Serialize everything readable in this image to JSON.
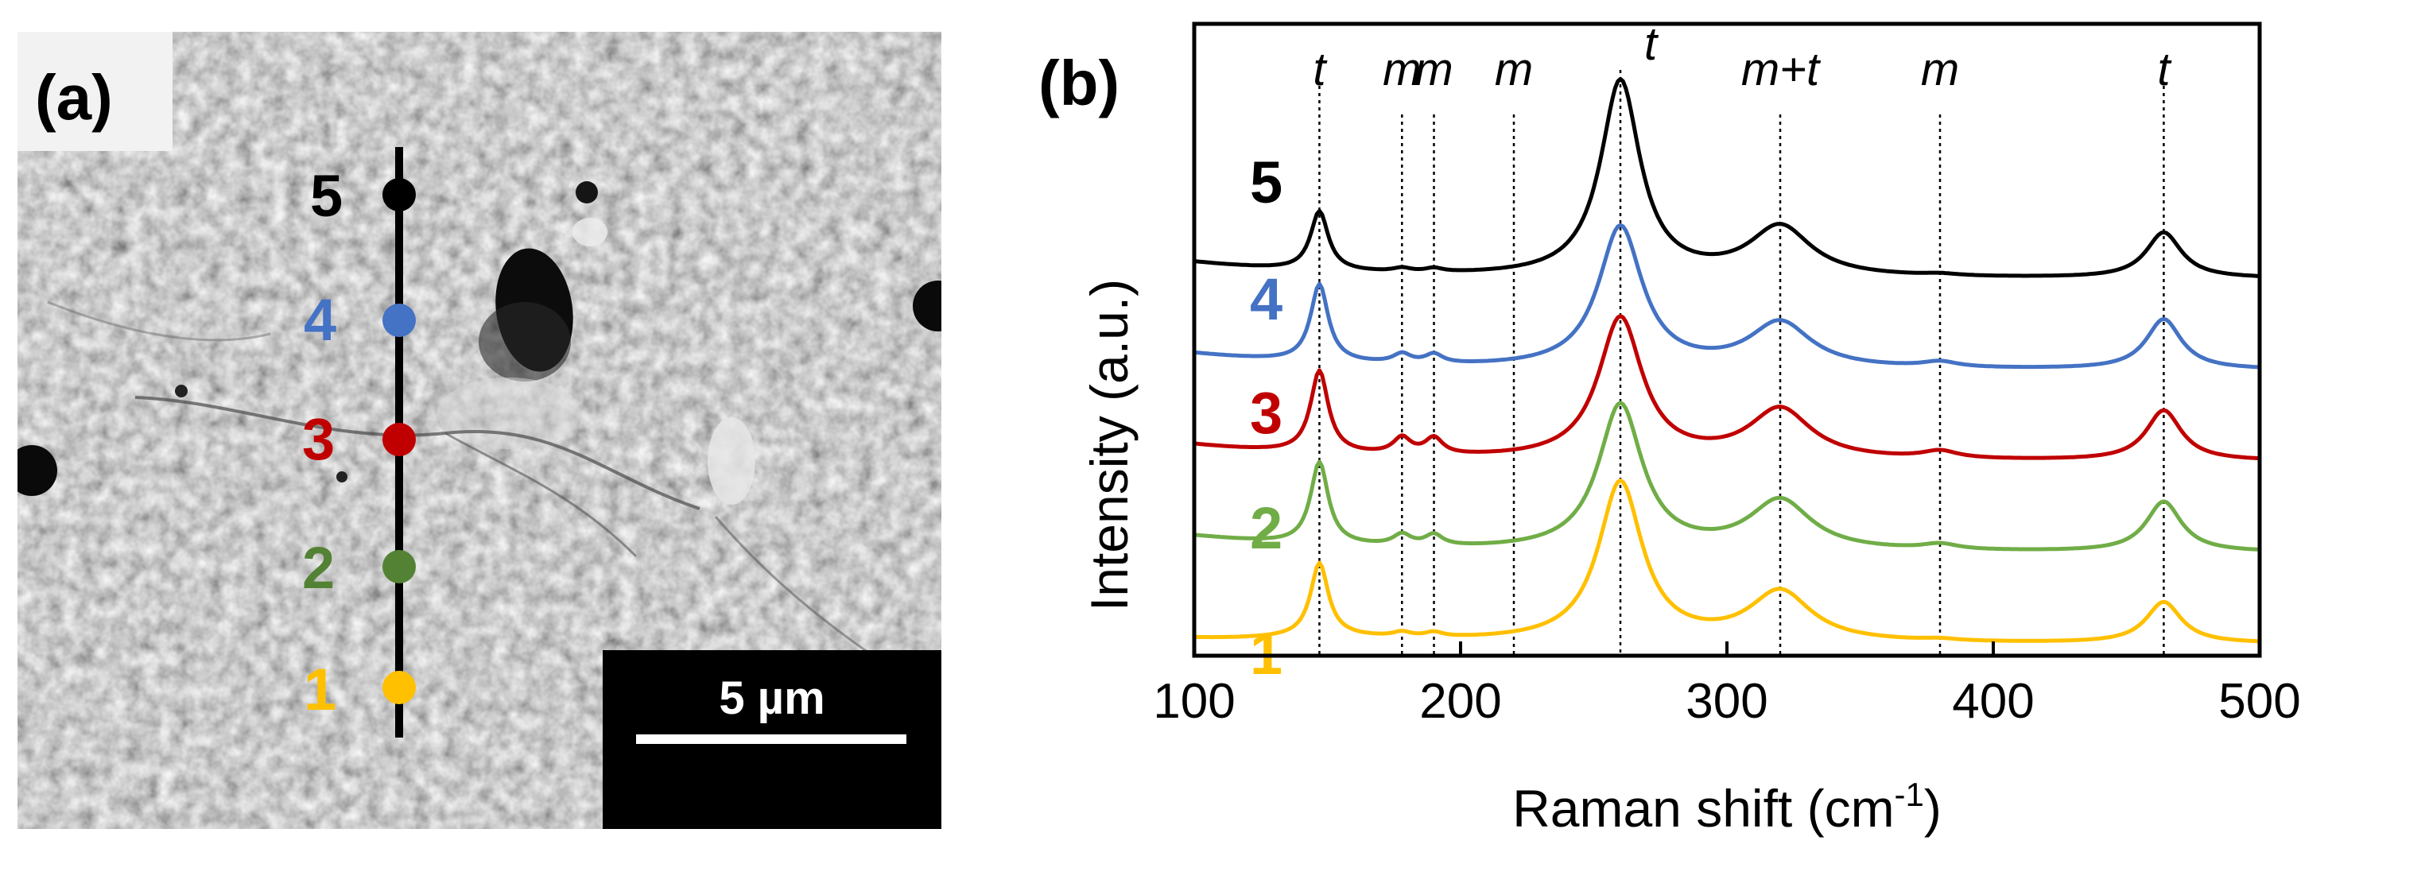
{
  "panel_a": {
    "label": "(a)",
    "points": [
      {
        "label": "5",
        "color": "#000000"
      },
      {
        "label": "4",
        "color": "#4472c4"
      },
      {
        "label": "3",
        "color": "#c00000"
      },
      {
        "label": "2",
        "color": "#548235"
      },
      {
        "label": "1",
        "color": "#ffc000"
      }
    ],
    "scalebar": "5 µm"
  },
  "panel_b": {
    "label": "(b)"
  },
  "chart_data": {
    "type": "line",
    "title": "",
    "xlabel": "Raman shift (cm",
    "xlabel_sup": "-1",
    "xlabel_close": ")",
    "ylabel": "Intensity (a.u.)",
    "xlim": [
      100,
      500
    ],
    "xticks": [
      100,
      200,
      300,
      400,
      500
    ],
    "xtick_labels": [
      "100",
      "200",
      "300",
      "400",
      "500"
    ],
    "grid": false,
    "peak_markers": [
      {
        "x": 147,
        "label": "t"
      },
      {
        "x": 178,
        "label": "m"
      },
      {
        "x": 190,
        "label": "m"
      },
      {
        "x": 220,
        "label": "m"
      },
      {
        "x": 260,
        "label": "t"
      },
      {
        "x": 320,
        "label": "m+t"
      },
      {
        "x": 380,
        "label": "m"
      },
      {
        "x": 464,
        "label": "t"
      }
    ],
    "series": [
      {
        "name": "5",
        "color": "#000000",
        "offset": 4.0,
        "peaks": [
          [
            147,
            0.65,
            4
          ],
          [
            178,
            0.04,
            4
          ],
          [
            190,
            0.04,
            4
          ],
          [
            260,
            2.15,
            9
          ],
          [
            320,
            0.55,
            14
          ],
          [
            380,
            0.02,
            8
          ],
          [
            464,
            0.5,
            8
          ]
        ]
      },
      {
        "name": "4",
        "color": "#4472c4",
        "offset": 3.0,
        "peaks": [
          [
            147,
            0.85,
            4
          ],
          [
            178,
            0.1,
            4
          ],
          [
            190,
            0.1,
            4
          ],
          [
            260,
            1.55,
            10
          ],
          [
            320,
            0.5,
            14
          ],
          [
            380,
            0.06,
            8
          ],
          [
            464,
            0.55,
            8
          ]
        ]
      },
      {
        "name": "3",
        "color": "#c00000",
        "offset": 2.0,
        "peaks": [
          [
            147,
            0.9,
            4
          ],
          [
            178,
            0.18,
            4
          ],
          [
            190,
            0.18,
            4
          ],
          [
            260,
            1.55,
            10
          ],
          [
            320,
            0.55,
            14
          ],
          [
            380,
            0.08,
            8
          ],
          [
            464,
            0.55,
            8
          ]
        ]
      },
      {
        "name": "2",
        "color": "#70ad47",
        "offset": 1.0,
        "peaks": [
          [
            147,
            0.9,
            4
          ],
          [
            178,
            0.12,
            4
          ],
          [
            190,
            0.12,
            4
          ],
          [
            260,
            1.6,
            10
          ],
          [
            320,
            0.55,
            14
          ],
          [
            380,
            0.06,
            8
          ],
          [
            464,
            0.55,
            8
          ]
        ]
      },
      {
        "name": "1",
        "color": "#ffc000",
        "offset": 0.0,
        "peaks": [
          [
            147,
            0.8,
            4
          ],
          [
            178,
            0.05,
            4
          ],
          [
            190,
            0.05,
            4
          ],
          [
            260,
            1.75,
            10
          ],
          [
            320,
            0.55,
            14
          ],
          [
            380,
            0.02,
            8
          ],
          [
            464,
            0.45,
            8
          ]
        ]
      }
    ]
  }
}
